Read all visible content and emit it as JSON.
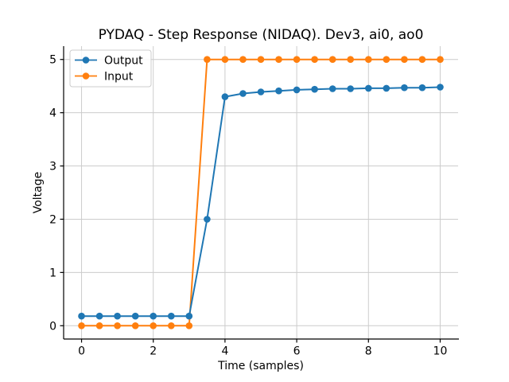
{
  "figure": {
    "background": "#ffffff",
    "text_color": "#000000",
    "grid_color": "#cccccc",
    "spine_color": "#000000",
    "legend_border_color": "#cccccc",
    "legend_background": "#ffffff"
  },
  "chart_data": {
    "type": "line",
    "title": "PYDAQ - Step Response (NIDAQ). Dev3, ai0, ao0",
    "xlabel": "Time (samples)",
    "ylabel": "Voltage",
    "xlim": [
      -0.5,
      10.5
    ],
    "ylim": [
      -0.25,
      5.25
    ],
    "xticks": [
      0,
      2,
      4,
      6,
      8,
      10
    ],
    "yticks": [
      0,
      1,
      2,
      3,
      4,
      5
    ],
    "grid": true,
    "legend_position": "upper-left",
    "x": [
      0,
      0.5,
      1,
      1.5,
      2,
      2.5,
      3,
      3.5,
      4,
      4.5,
      5,
      5.5,
      6,
      6.5,
      7,
      7.5,
      8,
      8.5,
      9,
      9.5,
      10
    ],
    "series": [
      {
        "name": "Output",
        "color": "#1f77b4",
        "marker": "circle",
        "values": [
          0.18,
          0.18,
          0.18,
          0.18,
          0.18,
          0.18,
          0.18,
          2.0,
          4.3,
          4.36,
          4.39,
          4.41,
          4.43,
          4.44,
          4.45,
          4.45,
          4.46,
          4.46,
          4.47,
          4.47,
          4.48
        ]
      },
      {
        "name": "Input",
        "color": "#ff7f0e",
        "marker": "circle",
        "values": [
          0,
          0,
          0,
          0,
          0,
          0,
          0,
          5,
          5,
          5,
          5,
          5,
          5,
          5,
          5,
          5,
          5,
          5,
          5,
          5,
          5
        ]
      }
    ]
  }
}
